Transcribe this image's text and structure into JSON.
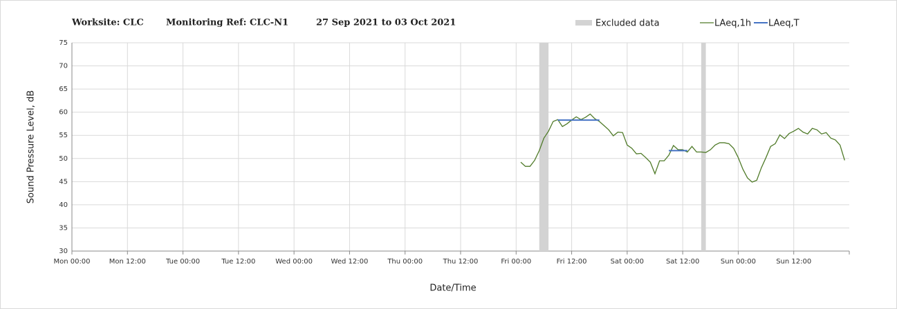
{
  "chart_data": {
    "type": "line",
    "title_parts": [
      "Worksite: CLC",
      "Monitoring Ref: CLC-N1",
      "27 Sep 2021 to 03 Oct 2021"
    ],
    "x_label": "Date/Time",
    "y_label": "Sound Pressure Level, dB",
    "xlim": [
      0,
      168
    ],
    "xticks": [
      {
        "value": 0,
        "label": "Mon 00:00"
      },
      {
        "value": 12,
        "label": "Mon 12:00"
      },
      {
        "value": 24,
        "label": "Tue 00:00"
      },
      {
        "value": 36,
        "label": "Tue 12:00"
      },
      {
        "value": 48,
        "label": "Wed 00:00"
      },
      {
        "value": 60,
        "label": "Wed 12:00"
      },
      {
        "value": 72,
        "label": "Thu 00:00"
      },
      {
        "value": 84,
        "label": "Thu 12:00"
      },
      {
        "value": 96,
        "label": "Fri 00:00"
      },
      {
        "value": 108,
        "label": "Fri 12:00"
      },
      {
        "value": 120,
        "label": "Sat 00:00"
      },
      {
        "value": 132,
        "label": "Sat 12:00"
      },
      {
        "value": 144,
        "label": "Sun 00:00"
      },
      {
        "value": 156,
        "label": "Sun 12:00"
      }
    ],
    "ylim": [
      30,
      75
    ],
    "yticks": [
      30,
      35,
      40,
      45,
      50,
      55,
      60,
      65,
      70,
      75
    ],
    "grid": true,
    "legend": "top-right",
    "excluded": {
      "name": "Excluded data",
      "color": "#d3d3d3",
      "start": [
        101,
        136
      ],
      "end": [
        103,
        137
      ]
    },
    "series": [
      {
        "name": "LAeq,1h",
        "color": "#4f7a28",
        "x": [
          97,
          98,
          99,
          100,
          101,
          102,
          103,
          104,
          105,
          106,
          107,
          108,
          109,
          110,
          111,
          112,
          113,
          114,
          115,
          116,
          117,
          118,
          119,
          120,
          121,
          122,
          123,
          124,
          125,
          126,
          127,
          128,
          129,
          130,
          131,
          132,
          133,
          134,
          135,
          136,
          137,
          138,
          139,
          140,
          141,
          142,
          143,
          144,
          145,
          146,
          147,
          148,
          149,
          150,
          151,
          152,
          153,
          154,
          155,
          156,
          157,
          158,
          159,
          160,
          161,
          162,
          163,
          164,
          165,
          166,
          167
        ],
        "values": [
          49.2,
          48.3,
          48.3,
          49.6,
          51.7,
          54.4,
          55.9,
          58.0,
          58.4,
          56.9,
          57.5,
          58.3,
          59.0,
          58.4,
          58.9,
          59.6,
          58.6,
          58.0,
          57.1,
          56.2,
          54.9,
          55.7,
          55.6,
          52.9,
          52.2,
          51.0,
          51.1,
          50.2,
          49.2,
          46.7,
          49.5,
          49.5,
          50.7,
          52.8,
          51.9,
          51.9,
          51.4,
          52.6,
          51.4,
          51.4,
          51.3,
          51.9,
          52.9,
          53.4,
          53.4,
          53.2,
          52.2,
          50.2,
          47.7,
          45.8,
          44.9,
          45.3,
          48.0,
          50.2,
          52.6,
          53.2,
          55.1,
          54.3,
          55.4,
          55.9,
          56.5,
          55.7,
          55.3,
          56.5,
          56.2,
          55.3,
          55.6,
          54.4,
          54.0,
          52.9,
          49.6
        ]
      },
      {
        "name": "LAeq,T",
        "color": "#4472c4",
        "start": [
          105,
          129
        ],
        "end": [
          114,
          133
        ],
        "values": [
          58.3,
          51.7
        ]
      }
    ]
  }
}
